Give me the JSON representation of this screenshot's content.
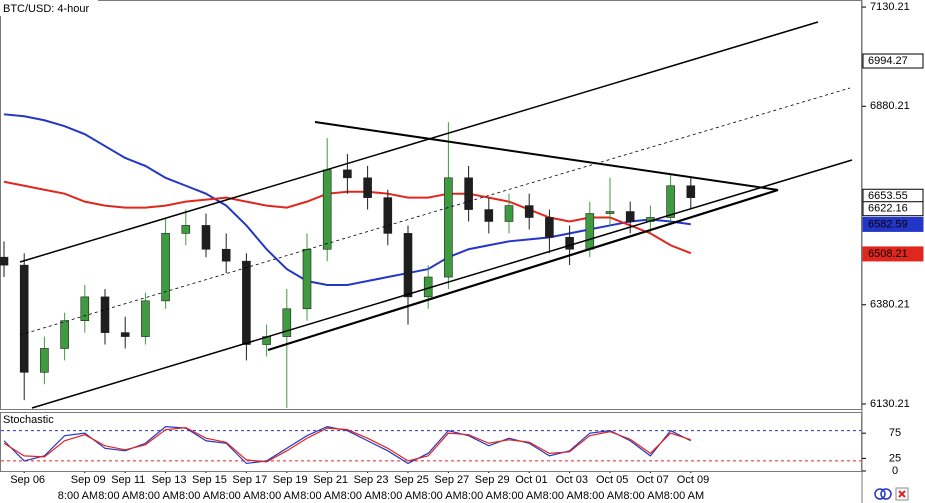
{
  "chart_data": [
    {
      "type": "candlestick",
      "title": "BTC/USD: 4-hour",
      "categories": [
        null,
        "Sep 06",
        null,
        null,
        "Sep 09",
        null,
        "Sep 11",
        null,
        "Sep 13",
        null,
        "Sep 15",
        null,
        "Sep 17",
        null,
        "Sep 19",
        null,
        "Sep 21",
        null,
        "Sep 23",
        null,
        "Sep 25",
        null,
        "Sep 27",
        null,
        "Sep 29",
        null,
        "Oct 01",
        null,
        "Oct 03",
        null,
        "Oct 05",
        null,
        "Oct 07",
        null,
        "Oct 09"
      ],
      "open": [
        6500,
        6480,
        6210,
        6270,
        6340,
        6400,
        6310,
        6300,
        6390,
        6560,
        6580,
        6520,
        6490,
        6280,
        6300,
        6370,
        6520,
        6720,
        6700,
        6650,
        6560,
        6400,
        6450,
        6700,
        6620,
        6590,
        6630,
        6600,
        6550,
        6520,
        6610,
        6615,
        6590,
        6600,
        6680
      ],
      "high": [
        6540,
        6510,
        6300,
        6360,
        6430,
        6420,
        6350,
        6410,
        6600,
        6620,
        6610,
        6560,
        6510,
        6330,
        6420,
        6560,
        6800,
        6760,
        6730,
        6670,
        6580,
        6480,
        6840,
        6730,
        6650,
        6660,
        6660,
        6620,
        6580,
        6640,
        6700,
        6640,
        6630,
        6710,
        6700
      ],
      "low": [
        6450,
        6140,
        6180,
        6240,
        6310,
        6280,
        6270,
        6280,
        6370,
        6530,
        6500,
        6460,
        6240,
        6250,
        6120,
        6340,
        6490,
        6660,
        6620,
        6530,
        6330,
        6370,
        6420,
        6590,
        6560,
        6560,
        6570,
        6510,
        6480,
        6500,
        6580,
        6560,
        6560,
        6580,
        6620
      ],
      "close": [
        6480,
        6210,
        6270,
        6340,
        6400,
        6310,
        6300,
        6390,
        6560,
        6580,
        6520,
        6490,
        6280,
        6300,
        6370,
        6520,
        6720,
        6700,
        6650,
        6560,
        6400,
        6450,
        6700,
        6620,
        6590,
        6630,
        6600,
        6550,
        6520,
        6610,
        6615,
        6590,
        6600,
        6680,
        6650
      ],
      "up_color": "#3f9b3f",
      "down_color": "#1e1e1e",
      "series": [
        {
          "color": "#2436c8",
          "values": [
            6860,
            6855,
            6845,
            6830,
            6810,
            6780,
            6750,
            6730,
            6700,
            6680,
            6660,
            6630,
            6580,
            6520,
            6470,
            6440,
            6430,
            6430,
            6440,
            6450,
            6460,
            6470,
            6500,
            6520,
            6530,
            6540,
            6545,
            6550,
            6560,
            6570,
            6580,
            6590,
            6595,
            6590,
            6583
          ]
        },
        {
          "color": "#e0261d",
          "values": [
            6690,
            6680,
            6670,
            6660,
            6640,
            6630,
            6625,
            6625,
            6630,
            6640,
            6645,
            6650,
            6640,
            6630,
            6625,
            6640,
            6660,
            6665,
            6665,
            6660,
            6650,
            6650,
            6660,
            6660,
            6650,
            6640,
            6620,
            6600,
            6590,
            6600,
            6600,
            6580,
            6560,
            6530,
            6510
          ]
        }
      ],
      "ylim": [
        6115,
        7148
      ],
      "yticks": [
        7130.21,
        6880.21,
        6380.21,
        6130.21
      ],
      "price_labels": [
        {
          "value": 6994.27,
          "fill": "#ffffff",
          "text_color": "#000000"
        },
        {
          "value": 6653.55,
          "fill": "#ffffff",
          "text_color": "#000000"
        },
        {
          "value": 6622.16,
          "fill": "#ffffff",
          "text_color": "#000000"
        },
        {
          "value": 6582.59,
          "fill": "#2436c8",
          "text_color": "#ffffff"
        },
        {
          "value": 6508.21,
          "fill": "#e0261d",
          "text_color": "#ffffff"
        }
      ],
      "time_label": "8:00 AM"
    },
    {
      "type": "line",
      "title": "Stochastic",
      "series": [
        {
          "color": "#2436c8",
          "values": [
            60,
            20,
            30,
            70,
            75,
            45,
            40,
            55,
            88,
            85,
            60,
            55,
            15,
            20,
            45,
            70,
            88,
            80,
            60,
            40,
            15,
            35,
            80,
            70,
            50,
            65,
            55,
            30,
            40,
            75,
            80,
            60,
            30,
            80,
            60
          ]
        },
        {
          "color": "#e0261d",
          "values": [
            55,
            30,
            28,
            60,
            72,
            50,
            42,
            52,
            82,
            86,
            65,
            57,
            22,
            18,
            40,
            65,
            85,
            82,
            65,
            45,
            20,
            30,
            75,
            72,
            55,
            62,
            57,
            35,
            38,
            70,
            78,
            63,
            35,
            75,
            62
          ]
        }
      ],
      "levels": [
        80,
        20
      ],
      "level_colors": [
        "#2436c8",
        "#e0261d"
      ],
      "ylim": [
        -2,
        117
      ],
      "yticks": [
        75,
        25,
        0
      ]
    }
  ]
}
